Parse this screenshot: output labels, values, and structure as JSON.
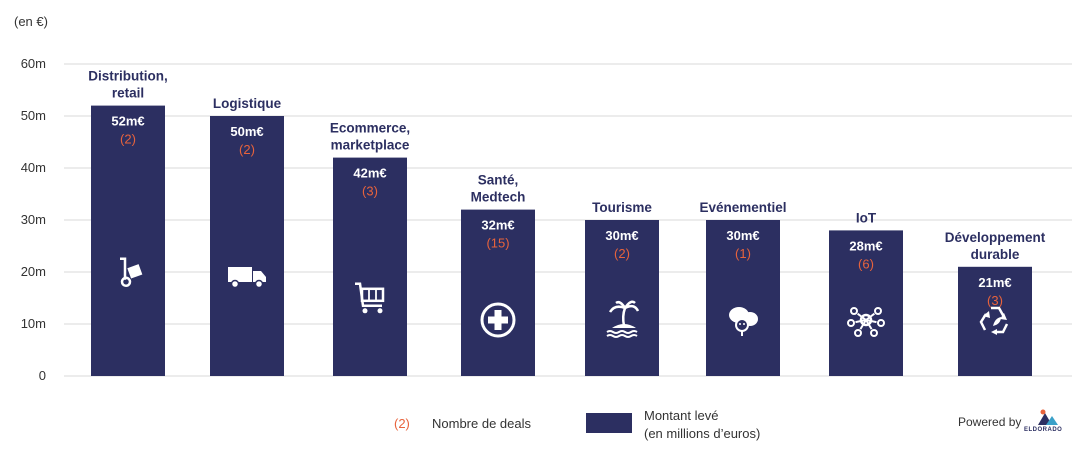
{
  "chart_data": {
    "type": "bar",
    "unit_label": "(en €)",
    "categories": [
      [
        "Distribution,",
        "retail"
      ],
      [
        "Logistique"
      ],
      [
        "Ecommerce,",
        "marketplace"
      ],
      [
        "Santé,",
        "Medtech"
      ],
      [
        "Tourisme"
      ],
      [
        "Evénementiel"
      ],
      [
        "IoT"
      ],
      [
        "Développement",
        "durable"
      ]
    ],
    "values": [
      52,
      50,
      42,
      32,
      30,
      30,
      28,
      21
    ],
    "value_labels": [
      "52m€",
      "50m€",
      "42m€",
      "32m€",
      "30m€",
      "30m€",
      "28m€",
      "21m€"
    ],
    "deal_counts": [
      "(2)",
      "(2)",
      "(3)",
      "(15)",
      "(2)",
      "(1)",
      "(6)",
      "(3)"
    ],
    "icons": [
      "hand-truck-icon",
      "truck-icon",
      "shopping-cart-icon",
      "medical-cross-icon",
      "island-icon",
      "party-icon",
      "network-icon",
      "recycle-icon"
    ],
    "ylim": [
      0,
      60
    ],
    "yticks": [
      0,
      10,
      20,
      30,
      40,
      50,
      60
    ],
    "ytick_labels": [
      "0",
      "10m",
      "20m",
      "30m",
      "40m",
      "50m",
      "60m"
    ],
    "grid": true,
    "colors": {
      "bar": "#2c2f61",
      "count": "#e8633c",
      "category": "#2c2f61",
      "grid": "#d9d9d9"
    }
  },
  "legend": {
    "count_symbol": "(2)",
    "count_text": "Nombre de deals",
    "amount_text_line1": "Montant levé",
    "amount_text_line2": "(en millions d’euros)"
  },
  "footer": {
    "powered_by": "Powered by",
    "logo_text": "ELDORADO"
  }
}
